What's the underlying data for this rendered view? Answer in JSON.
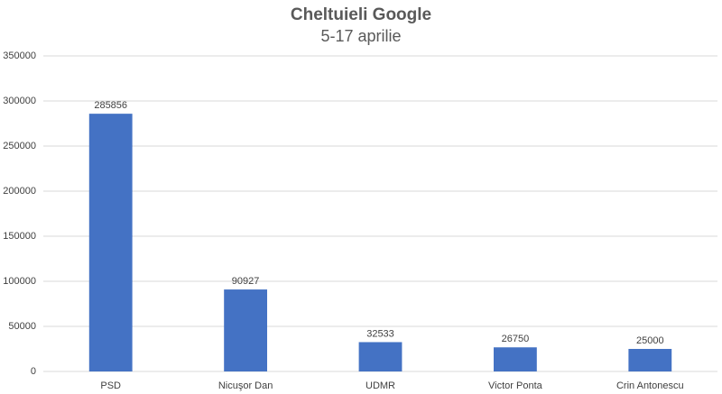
{
  "chart_data": {
    "type": "bar",
    "title": "Cheltuieli Google",
    "subtitle": "5-17 aprilie",
    "categories": [
      "PSD",
      "Nicuşor Dan",
      "UDMR",
      "Victor Ponta",
      "Crin Antonescu"
    ],
    "values": [
      285856,
      90927,
      32533,
      26750,
      25000
    ],
    "color": "#4472c4",
    "ylim": [
      0,
      350000
    ],
    "yticks": [
      0,
      50000,
      100000,
      150000,
      200000,
      250000,
      300000,
      350000
    ],
    "grid": true
  }
}
